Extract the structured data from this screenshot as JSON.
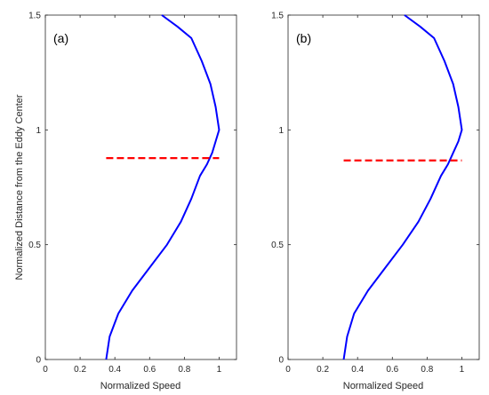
{
  "chart_data": [
    {
      "type": "line",
      "panel_label": "(a)",
      "xlabel": "Normalized Speed",
      "ylabel": "Normalized Distance from the Eddy Center",
      "xlim": [
        0,
        1.1
      ],
      "ylim": [
        0,
        1.5
      ],
      "x_ticks": [
        0,
        0.2,
        0.4,
        0.6,
        0.8,
        1
      ],
      "x_tick_labels": [
        "0",
        "0.2",
        "0.4",
        "0.6",
        "0.8",
        "1"
      ],
      "y_ticks": [
        0,
        0.5,
        1,
        1.5
      ],
      "y_tick_labels": [
        "0",
        "0.5",
        "1",
        "1.5"
      ],
      "grid": false,
      "series": [
        {
          "style": "solid",
          "color": "#0000ff",
          "x": [
            0.35,
            0.37,
            0.42,
            0.5,
            0.6,
            0.7,
            0.78,
            0.84,
            0.89,
            0.93,
            0.96,
            0.98,
            1.0,
            0.98,
            0.95,
            0.9,
            0.84,
            0.76,
            0.67
          ],
          "y": [
            0,
            0.1,
            0.2,
            0.3,
            0.4,
            0.5,
            0.6,
            0.7,
            0.8,
            0.85,
            0.9,
            0.95,
            1.0,
            1.1,
            1.2,
            1.3,
            1.4,
            1.45,
            1.5
          ]
        },
        {
          "style": "dashed",
          "color": "#ff0000",
          "x": [
            0.35,
            1.0
          ],
          "y": [
            0.877,
            0.877
          ]
        }
      ]
    },
    {
      "type": "line",
      "panel_label": "(b)",
      "xlabel": "Normalized Speed",
      "ylabel": "",
      "xlim": [
        0,
        1.1
      ],
      "ylim": [
        0,
        1.5
      ],
      "x_ticks": [
        0,
        0.2,
        0.4,
        0.6,
        0.8,
        1
      ],
      "x_tick_labels": [
        "0",
        "0.2",
        "0.4",
        "0.6",
        "0.8",
        "1"
      ],
      "y_ticks": [
        0,
        0.5,
        1,
        1.5
      ],
      "y_tick_labels": [
        "0",
        "0.5",
        "1",
        "1.5"
      ],
      "grid": false,
      "series": [
        {
          "style": "solid",
          "color": "#0000ff",
          "x": [
            0.32,
            0.34,
            0.38,
            0.46,
            0.56,
            0.66,
            0.75,
            0.82,
            0.88,
            0.92,
            0.95,
            0.98,
            1.0,
            0.98,
            0.95,
            0.9,
            0.84,
            0.76,
            0.67
          ],
          "y": [
            0,
            0.1,
            0.2,
            0.3,
            0.4,
            0.5,
            0.6,
            0.7,
            0.8,
            0.85,
            0.9,
            0.95,
            1.0,
            1.1,
            1.2,
            1.3,
            1.4,
            1.45,
            1.5
          ]
        },
        {
          "style": "dashed",
          "color": "#ff0000",
          "x": [
            0.32,
            1.0
          ],
          "y": [
            0.867,
            0.867
          ]
        }
      ]
    }
  ]
}
